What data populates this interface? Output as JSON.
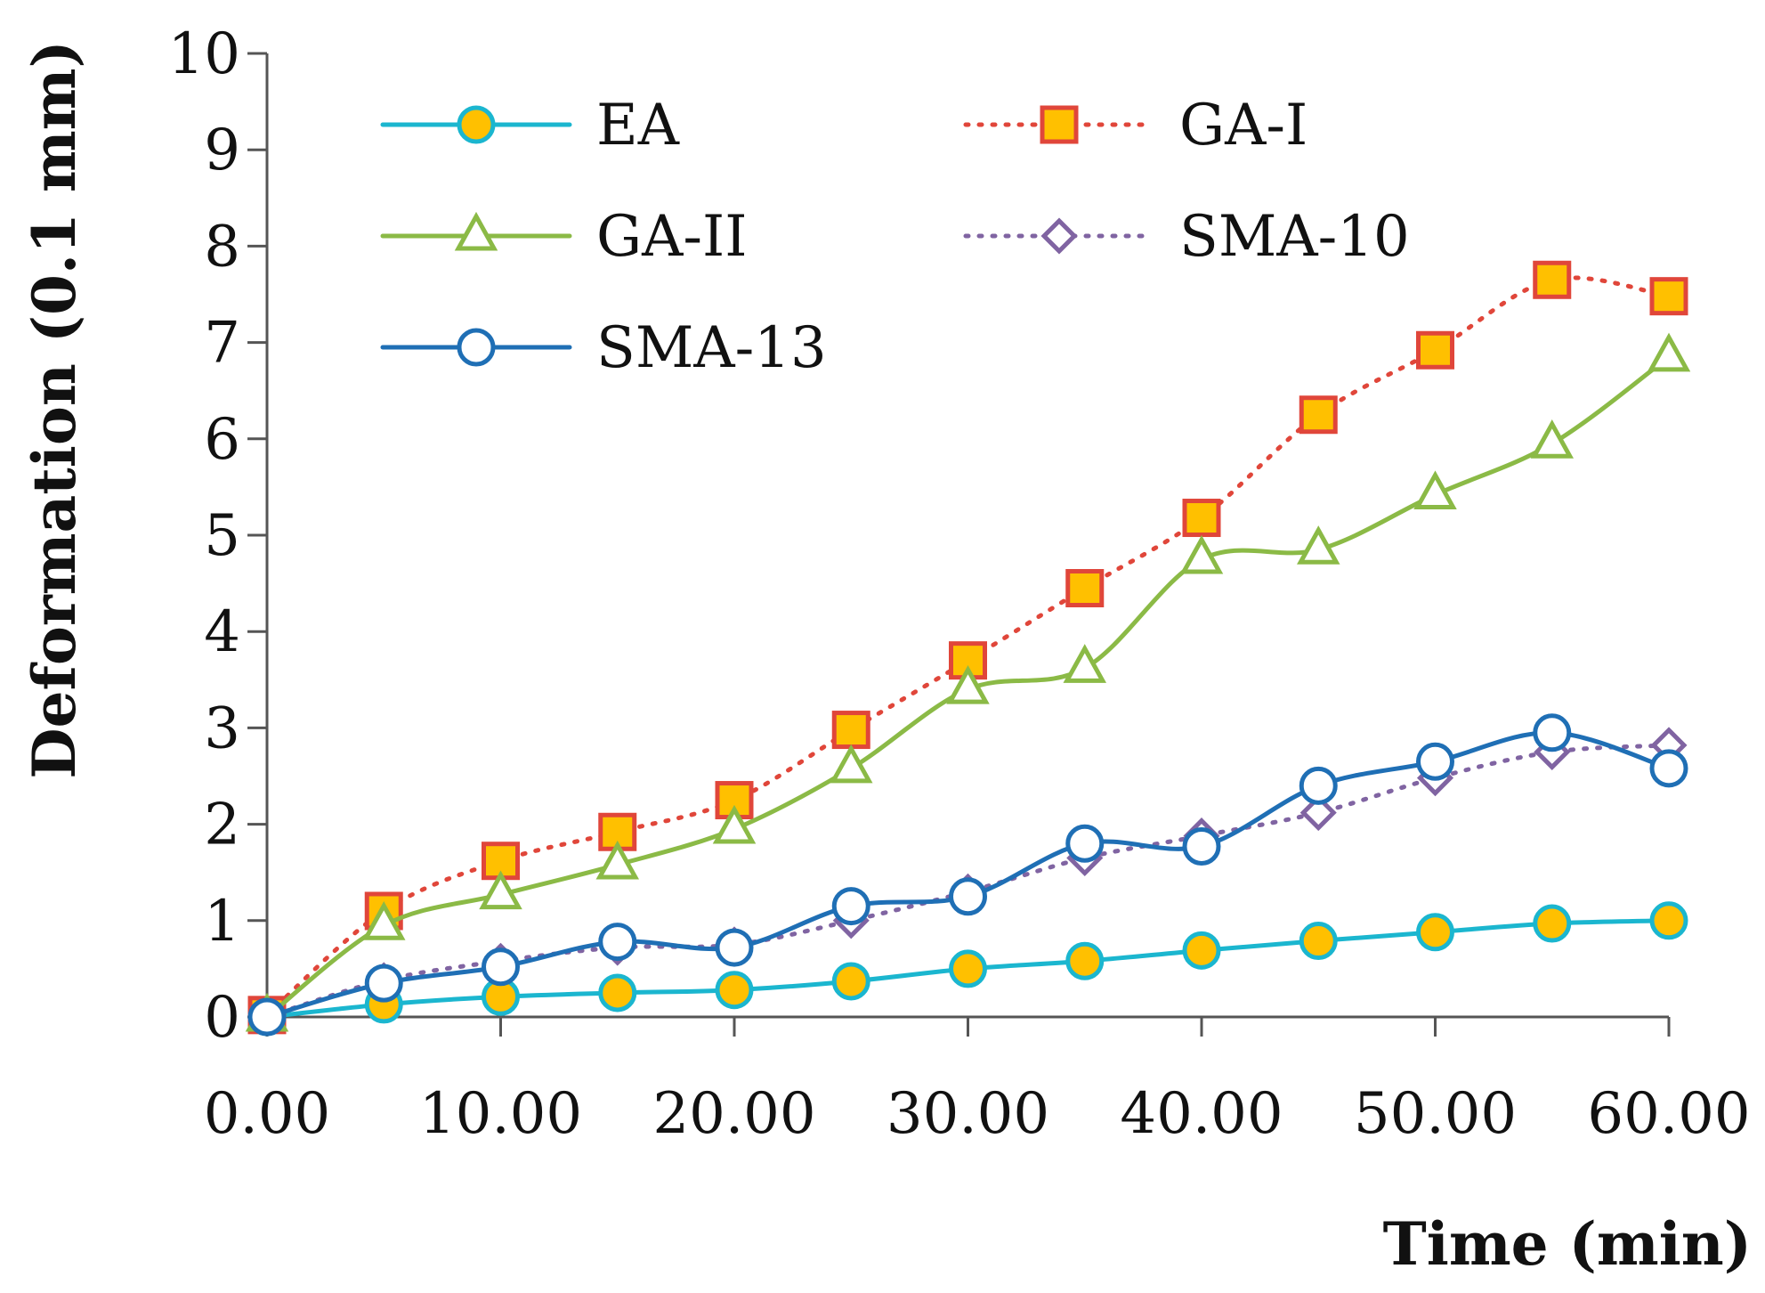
{
  "chart_data": {
    "type": "line",
    "title": "",
    "xlabel": "Time (min)",
    "ylabel": "Deformation (0.1 mm)",
    "xlim": [
      0,
      60
    ],
    "ylim": [
      0,
      10
    ],
    "x": [
      0,
      5,
      10,
      15,
      20,
      25,
      30,
      35,
      40,
      45,
      50,
      55,
      60
    ],
    "x_ticks": [
      "0.00",
      "10.00",
      "20.00",
      "30.00",
      "40.00",
      "50.00",
      "60.00"
    ],
    "y_ticks": [
      "0",
      "1",
      "2",
      "3",
      "4",
      "5",
      "6",
      "7",
      "8",
      "9",
      "10"
    ],
    "grid": false,
    "legend_position": "top-left",
    "series": [
      {
        "name": "EA",
        "line_color": "#1BB6CF",
        "marker": "circle-filled",
        "marker_fill": "#FFC000",
        "dash": "solid",
        "values": [
          0,
          0.13,
          0.21,
          0.25,
          0.28,
          0.37,
          0.5,
          0.58,
          0.69,
          0.79,
          0.88,
          0.97,
          1.0
        ]
      },
      {
        "name": "GA-I",
        "line_color": "#E0463A",
        "marker": "square-filled",
        "marker_fill": "#FFC000",
        "dash": "dotted",
        "values": [
          0.02,
          1.1,
          1.62,
          1.92,
          2.25,
          2.98,
          3.7,
          4.45,
          5.18,
          6.25,
          6.92,
          7.65,
          7.48
        ]
      },
      {
        "name": "GA-II",
        "line_color": "#8BBA46",
        "marker": "triangle-open",
        "marker_fill": "#ffffff",
        "dash": "solid",
        "values": [
          0,
          0.95,
          1.27,
          1.58,
          1.95,
          2.58,
          3.4,
          3.62,
          4.75,
          4.85,
          5.42,
          5.95,
          6.85
        ]
      },
      {
        "name": "SMA-10",
        "line_color": "#8064A2",
        "marker": "diamond-open",
        "marker_fill": "#ffffff",
        "dash": "dotted",
        "values": [
          0,
          0.38,
          0.58,
          0.72,
          0.75,
          1.0,
          1.3,
          1.65,
          1.88,
          2.12,
          2.48,
          2.75,
          2.82
        ]
      },
      {
        "name": "SMA-13",
        "line_color": "#1F6FB5",
        "marker": "circle-open",
        "marker_fill": "#ffffff",
        "dash": "solid",
        "values": [
          0,
          0.35,
          0.52,
          0.78,
          0.72,
          1.15,
          1.25,
          1.8,
          1.77,
          2.4,
          2.65,
          2.95,
          2.58
        ]
      }
    ]
  }
}
